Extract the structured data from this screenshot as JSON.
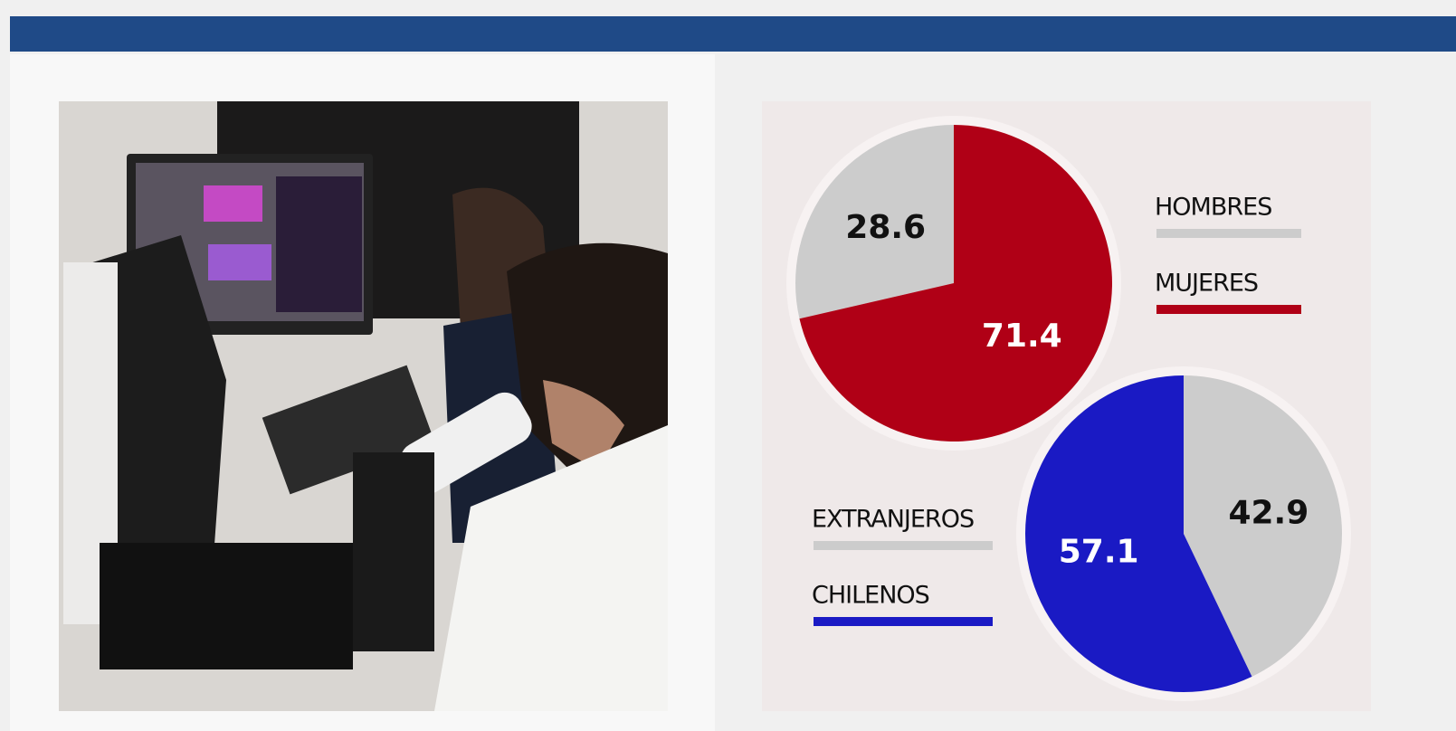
{
  "chart_data": [
    {
      "type": "pie",
      "categories": [
        "HOMBRES",
        "MUJERES"
      ],
      "values": [
        28.6,
        71.4
      ],
      "colors": [
        "#cccccc",
        "#b00016"
      ]
    },
    {
      "type": "pie",
      "categories": [
        "EXTRANJEROS",
        "CHILENOS"
      ],
      "values": [
        42.9,
        57.1
      ],
      "colors": [
        "#cccccc",
        "#1a1ac4"
      ]
    }
  ]
}
